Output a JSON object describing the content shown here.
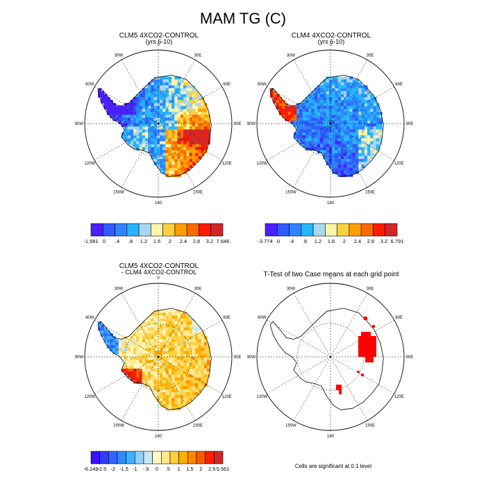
{
  "title": "MAM TG (C)",
  "longitude_labels": [
    "0",
    "30E",
    "60E",
    "90E",
    "120E",
    "150E",
    "180",
    "150W",
    "120W",
    "90W",
    "60W",
    "30W"
  ],
  "panels": [
    {
      "id": "clm5",
      "title": "CLM5 4XCO2-CONTROL",
      "subtitle": "(yrs 6-10)",
      "colorbar": {
        "colors": [
          "#4b1fff",
          "#2f5bff",
          "#2f85ff",
          "#26b4ff",
          "#a8d8f0",
          "#fff5a8",
          "#ffd040",
          "#ff9e00",
          "#ff6a00",
          "#ff1a00",
          "#d02828"
        ],
        "labels": [
          "-1.581",
          "0",
          ".4",
          ".8",
          "1.2",
          "1.6",
          "2",
          "2.4",
          "2.8",
          "3.2",
          "7.646"
        ]
      }
    },
    {
      "id": "clm4",
      "title": "CLM4 4XCO2-CONTROL",
      "subtitle": "(yrs 6-10)",
      "colorbar": {
        "colors": [
          "#4b1fff",
          "#2f5bff",
          "#2f85ff",
          "#26b4ff",
          "#a8d8f0",
          "#fff5a8",
          "#ffd040",
          "#ff9e00",
          "#ff6a00",
          "#ff1a00",
          "#d02828"
        ],
        "labels": [
          "-3.774",
          "0",
          ".4",
          ".8",
          "1.2",
          "1.6",
          "2",
          "2.4",
          "2.8",
          "3.2",
          "6.791"
        ]
      }
    },
    {
      "id": "diff",
      "title": "CLM5 4XCO2-CONTROL",
      "subtitle": "- CLM4 4XCO2-CONTROL",
      "colorbar": {
        "colors": [
          "#3a10ff",
          "#2e3cff",
          "#3264ff",
          "#2f8cff",
          "#3cb0ff",
          "#8fd0f5",
          "#c8e8f8",
          "#fff8c0",
          "#ffe890",
          "#ffd040",
          "#ffb000",
          "#ff8800",
          "#ff5a00",
          "#ff2000",
          "#d02828"
        ],
        "labels": [
          "-6.249",
          "-2.5",
          "-2",
          "-1.5",
          "-1",
          "-.5",
          "0",
          ".5",
          "1",
          "1.5",
          "2",
          "2.5",
          "5.561"
        ]
      }
    },
    {
      "id": "ttest",
      "title": "T-Test of two Case means at each grid point",
      "note": "Cells are significant at 0.1 level"
    }
  ]
}
